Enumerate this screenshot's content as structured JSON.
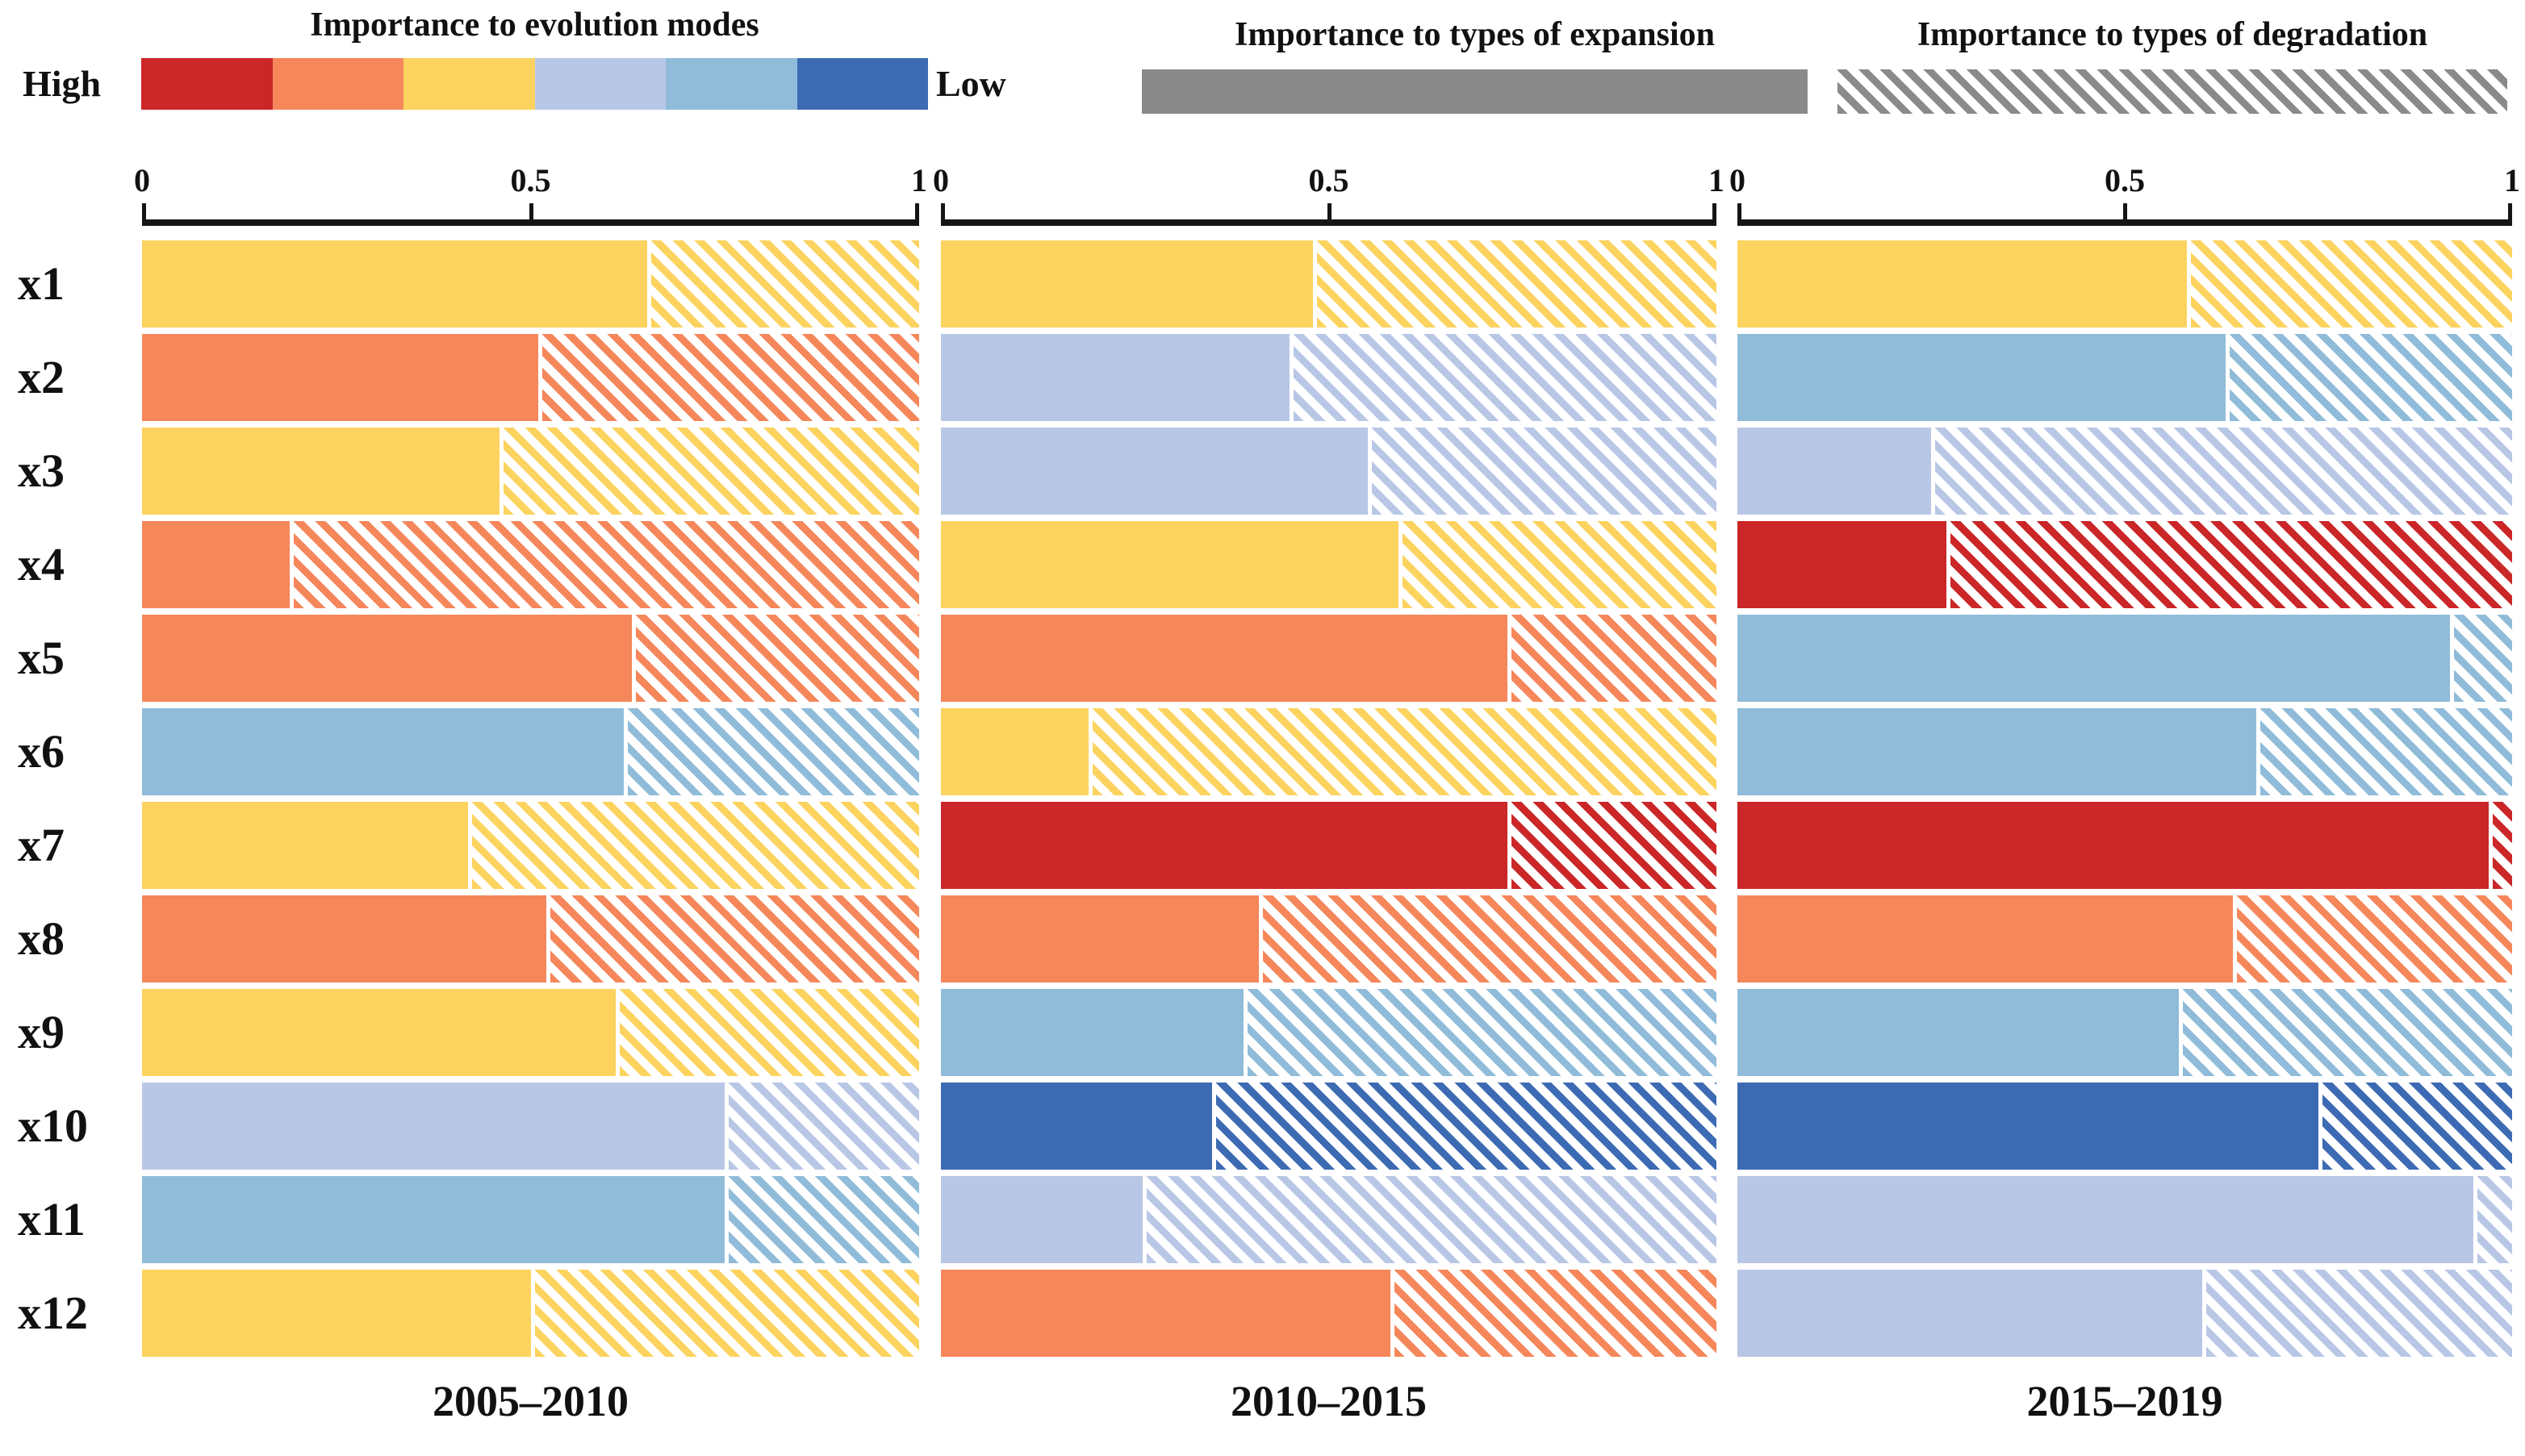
{
  "legend": {
    "evolution": {
      "title": "Importance to evolution modes",
      "high_label": "High",
      "low_label": "Low",
      "scale_order": [
        "red",
        "orange",
        "yellow",
        "lavender",
        "lightblue",
        "blue"
      ]
    },
    "expansion": {
      "title": "Importance to types of expansion",
      "style": "solid-gray"
    },
    "degradation": {
      "title": "Importance to types of degradation",
      "style": "hatched-gray"
    }
  },
  "axis": {
    "ticks": [
      "0",
      "0.5",
      "1"
    ],
    "min": 0,
    "max": 1
  },
  "colors": {
    "red": "#cb2628",
    "orange": "#f5875b",
    "yellow": "#fcd35f",
    "lavender": "#b9c7e6",
    "lightblue": "#90bcd9",
    "blue": "#3d6bb3",
    "gray": "#8a8a8a",
    "axis": "#151515"
  },
  "chart_data": {
    "type": "bar",
    "orientation": "horizontal-stacked",
    "xlim": [
      0,
      1
    ],
    "x_ticks": [
      0,
      0.5,
      1
    ],
    "grid": false,
    "variables": [
      "x1",
      "x2",
      "x3",
      "x4",
      "x5",
      "x6",
      "x7",
      "x8",
      "x9",
      "x10",
      "x11",
      "x12"
    ],
    "encoding_solid": "Importance to types of expansion",
    "encoding_hatched": "Importance to types of degradation",
    "encoding_color": "Importance to evolution modes, high to low: red, orange, yellow, lavender, lightblue, blue",
    "panels": [
      {
        "period": "2005–2010",
        "bars": [
          {
            "variable": "x1",
            "color": "yellow",
            "expansion": 0.65,
            "degradation": 0.35
          },
          {
            "variable": "x2",
            "color": "orange",
            "expansion": 0.51,
            "degradation": 0.49
          },
          {
            "variable": "x3",
            "color": "yellow",
            "expansion": 0.46,
            "degradation": 0.54
          },
          {
            "variable": "x4",
            "color": "orange",
            "expansion": 0.19,
            "degradation": 0.81
          },
          {
            "variable": "x5",
            "color": "orange",
            "expansion": 0.63,
            "degradation": 0.37
          },
          {
            "variable": "x6",
            "color": "lightblue",
            "expansion": 0.62,
            "degradation": 0.38
          },
          {
            "variable": "x7",
            "color": "yellow",
            "expansion": 0.42,
            "degradation": 0.58
          },
          {
            "variable": "x8",
            "color": "orange",
            "expansion": 0.52,
            "degradation": 0.48
          },
          {
            "variable": "x9",
            "color": "yellow",
            "expansion": 0.61,
            "degradation": 0.39
          },
          {
            "variable": "x10",
            "color": "lavender",
            "expansion": 0.75,
            "degradation": 0.25
          },
          {
            "variable": "x11",
            "color": "lightblue",
            "expansion": 0.75,
            "degradation": 0.25
          },
          {
            "variable": "x12",
            "color": "yellow",
            "expansion": 0.5,
            "degradation": 0.5
          }
        ]
      },
      {
        "period": "2010–2015",
        "bars": [
          {
            "variable": "x1",
            "color": "yellow",
            "expansion": 0.48,
            "degradation": 0.52
          },
          {
            "variable": "x2",
            "color": "lavender",
            "expansion": 0.45,
            "degradation": 0.55
          },
          {
            "variable": "x3",
            "color": "lavender",
            "expansion": 0.55,
            "degradation": 0.45
          },
          {
            "variable": "x4",
            "color": "yellow",
            "expansion": 0.59,
            "degradation": 0.41
          },
          {
            "variable": "x5",
            "color": "orange",
            "expansion": 0.73,
            "degradation": 0.27
          },
          {
            "variable": "x6",
            "color": "yellow",
            "expansion": 0.19,
            "degradation": 0.81
          },
          {
            "variable": "x7",
            "color": "red",
            "expansion": 0.73,
            "degradation": 0.27
          },
          {
            "variable": "x8",
            "color": "orange",
            "expansion": 0.41,
            "degradation": 0.59
          },
          {
            "variable": "x9",
            "color": "lightblue",
            "expansion": 0.39,
            "degradation": 0.61
          },
          {
            "variable": "x10",
            "color": "blue",
            "expansion": 0.35,
            "degradation": 0.65
          },
          {
            "variable": "x11",
            "color": "lavender",
            "expansion": 0.26,
            "degradation": 0.74
          },
          {
            "variable": "x12",
            "color": "orange",
            "expansion": 0.58,
            "degradation": 0.42
          }
        ]
      },
      {
        "period": "2015–2019",
        "bars": [
          {
            "variable": "x1",
            "color": "yellow",
            "expansion": 0.58,
            "degradation": 0.42
          },
          {
            "variable": "x2",
            "color": "lightblue",
            "expansion": 0.63,
            "degradation": 0.37
          },
          {
            "variable": "x3",
            "color": "lavender",
            "expansion": 0.25,
            "degradation": 0.75
          },
          {
            "variable": "x4",
            "color": "red",
            "expansion": 0.27,
            "degradation": 0.73
          },
          {
            "variable": "x5",
            "color": "lightblue",
            "expansion": 0.92,
            "degradation": 0.08
          },
          {
            "variable": "x6",
            "color": "lightblue",
            "expansion": 0.67,
            "degradation": 0.33
          },
          {
            "variable": "x7",
            "color": "red",
            "expansion": 0.97,
            "degradation": 0.03
          },
          {
            "variable": "x8",
            "color": "orange",
            "expansion": 0.64,
            "degradation": 0.36
          },
          {
            "variable": "x9",
            "color": "lightblue",
            "expansion": 0.57,
            "degradation": 0.43
          },
          {
            "variable": "x10",
            "color": "blue",
            "expansion": 0.75,
            "degradation": 0.25
          },
          {
            "variable": "x11",
            "color": "lavender",
            "expansion": 0.95,
            "degradation": 0.05
          },
          {
            "variable": "x12",
            "color": "lavender",
            "expansion": 0.6,
            "degradation": 0.4
          }
        ]
      }
    ]
  }
}
